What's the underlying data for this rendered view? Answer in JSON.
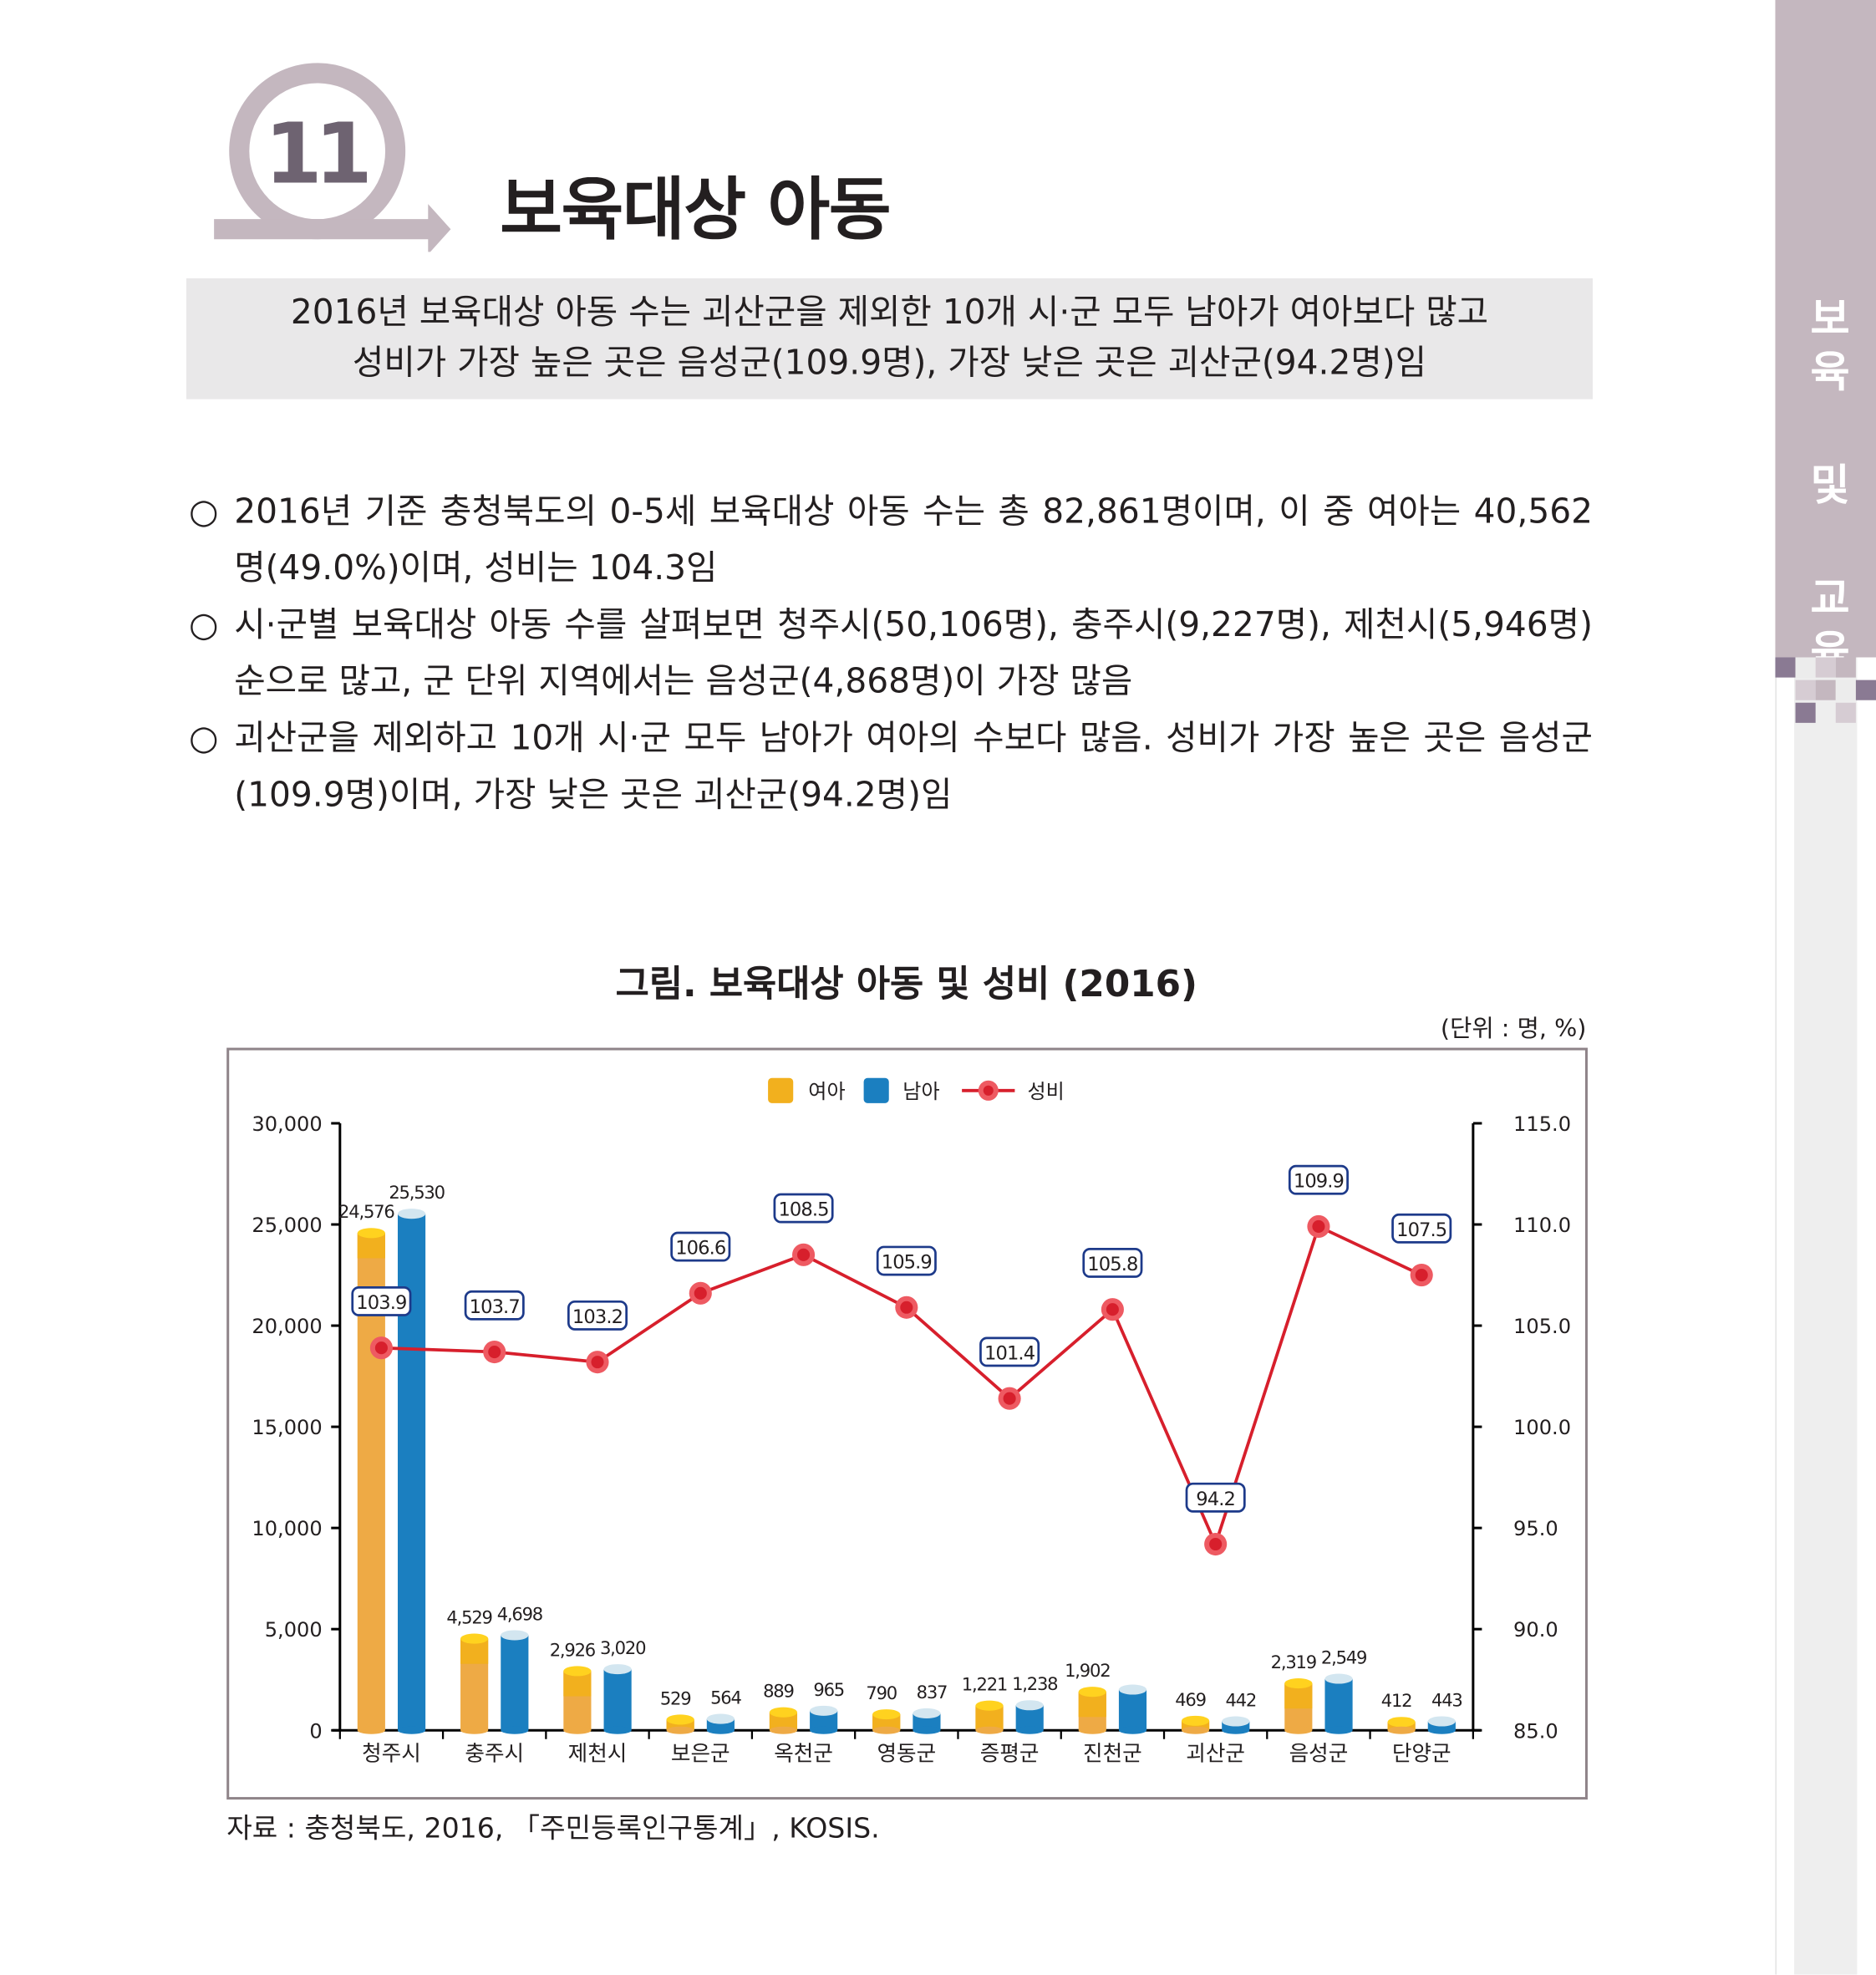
{
  "header": {
    "section_number": "11",
    "title": "보육대상 아동"
  },
  "sidebar": {
    "chars": [
      "보",
      "육",
      "및",
      "교",
      "육"
    ],
    "label": "보육 및 교육"
  },
  "summary": {
    "lines": [
      "2016년 보육대상 아동 수는 괴산군을 제외한 10개 시·군 모두 남아가 여아보다 많고",
      "성비가 가장 높은 곳은 음성군(109.9명), 가장 낮은 곳은 괴산군(94.2명)임"
    ]
  },
  "bullets": [
    {
      "marker": "○",
      "text": "2016년 기준 충청북도의 0-5세 보육대상 아동 수는 총 82,861명이며, 이 중 여아는 40,562명(49.0%)이며, 성비는 104.3임"
    },
    {
      "marker": "○",
      "text": "시·군별 보육대상 아동 수를 살펴보면 청주시(50,106명), 충주시(9,227명), 제천시(5,946명) 순으로 많고, 군 단위 지역에서는 음성군(4,868명)이 가장 많음"
    },
    {
      "marker": "○",
      "text": "괴산군을 제외하고 10개 시·군 모두 남아가 여아의 수보다 많음. 성비가 가장 높은 곳은 음성군(109.9명)이며, 가장 낮은 곳은 괴산군(94.2명)임"
    }
  ],
  "chart_title": "그림. 보육대상 아동 및 성비 (2016)",
  "unit": "(단위 : 명, %)",
  "source": "자료 : 충청북도, 2016, 「주민등록인구통계」, KOSIS.",
  "colors": {
    "girls": "#f2b01e",
    "boys": "#1b7fc0",
    "ratio": "#d71f2c",
    "label_border": "#1d3a8a",
    "frame": "#8f8489",
    "sidebar": "#c4b7bf"
  },
  "chart_data": {
    "type": "bar+line",
    "categories": [
      "청주시",
      "충주시",
      "제천시",
      "보은군",
      "옥천군",
      "영동군",
      "증평군",
      "진천군",
      "괴산군",
      "음성군",
      "단양군"
    ],
    "series": [
      {
        "name": "여아",
        "type": "bar",
        "axis": "left",
        "values": [
          24576,
          4529,
          2926,
          529,
          889,
          790,
          1221,
          1902,
          469,
          2319,
          412
        ],
        "labels": [
          "24,576",
          "4,529",
          "2,926",
          "529",
          "889",
          "790",
          "1,221",
          "1,902",
          "469",
          "2,319",
          "412"
        ]
      },
      {
        "name": "남아",
        "type": "bar",
        "axis": "left",
        "values": [
          25530,
          4698,
          3020,
          564,
          965,
          837,
          1238,
          2012,
          442,
          2549,
          443
        ],
        "labels": [
          "25,530",
          "4,698",
          "3,020",
          "564",
          "965",
          "837",
          "1,238",
          null,
          "442",
          "2,549",
          "443"
        ]
      },
      {
        "name": "성비",
        "type": "line",
        "axis": "right",
        "values": [
          103.9,
          103.7,
          103.2,
          106.6,
          108.5,
          105.9,
          101.4,
          105.8,
          94.2,
          109.9,
          107.5
        ],
        "labels": [
          "103.9",
          "103.7",
          "103.2",
          "106.6",
          "108.5",
          "105.9",
          "101.4",
          "105.8",
          "94.2",
          "109.9",
          "107.5"
        ]
      }
    ],
    "left_axis": {
      "range": [
        0,
        30000
      ],
      "ticks": [
        "0",
        "5,000",
        "10,000",
        "15,000",
        "20,000",
        "25,000",
        "30,000"
      ]
    },
    "right_axis": {
      "range": [
        85,
        115
      ],
      "ticks": [
        "85.0",
        "90.0",
        "95.0",
        "100.0",
        "105.0",
        "110.0",
        "115.0"
      ]
    },
    "legend": {
      "placement": "top-center",
      "entries": [
        "여아",
        "남아",
        "성비"
      ]
    },
    "grid": false
  }
}
